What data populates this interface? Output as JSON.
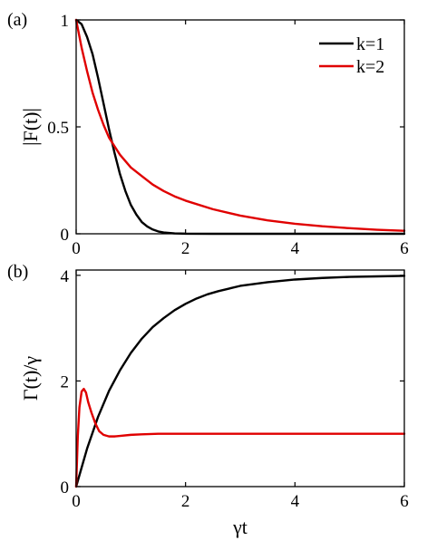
{
  "chart_data": [
    {
      "panel_label": "(a)",
      "type": "line",
      "xlabel": "",
      "ylabel": "|F(t)|",
      "xlim": [
        0,
        6
      ],
      "ylim": [
        0,
        1
      ],
      "xticks": [
        0,
        2,
        4,
        6
      ],
      "xtick_labels": [
        "0",
        "2",
        "4",
        "6"
      ],
      "yticks": [
        0,
        0.5,
        1
      ],
      "ytick_labels": [
        "0",
        "0.5",
        "1"
      ],
      "legend_position": "top-right",
      "series": [
        {
          "name": "k=1",
          "color": "#000000",
          "x": [
            0,
            0.1,
            0.2,
            0.3,
            0.4,
            0.5,
            0.6,
            0.7,
            0.8,
            0.9,
            1.0,
            1.1,
            1.2,
            1.3,
            1.4,
            1.5,
            1.6,
            1.8,
            2.0,
            2.5,
            3.0,
            4.0,
            5.0,
            6.0
          ],
          "y": [
            1.0,
            0.98,
            0.92,
            0.84,
            0.73,
            0.61,
            0.49,
            0.38,
            0.28,
            0.2,
            0.135,
            0.09,
            0.055,
            0.034,
            0.02,
            0.011,
            0.006,
            0.002,
            0.0005,
            0,
            0,
            0,
            0,
            0
          ]
        },
        {
          "name": "k=2",
          "color": "#e00000",
          "x": [
            0,
            0.1,
            0.2,
            0.3,
            0.4,
            0.5,
            0.6,
            0.7,
            0.8,
            1.0,
            1.2,
            1.4,
            1.6,
            1.8,
            2.0,
            2.5,
            3.0,
            3.5,
            4.0,
            4.5,
            5.0,
            5.5,
            6.0
          ],
          "y": [
            1.0,
            0.87,
            0.76,
            0.66,
            0.58,
            0.51,
            0.45,
            0.41,
            0.37,
            0.31,
            0.27,
            0.23,
            0.2,
            0.175,
            0.155,
            0.115,
            0.085,
            0.063,
            0.047,
            0.035,
            0.026,
            0.019,
            0.014
          ]
        }
      ]
    },
    {
      "panel_label": "(b)",
      "type": "line",
      "xlabel": "γt",
      "ylabel": "Γ(t)/γ",
      "xlim": [
        0,
        6
      ],
      "ylim": [
        0,
        4.1
      ],
      "xticks": [
        0,
        2,
        4,
        6
      ],
      "xtick_labels": [
        "0",
        "2",
        "4",
        "6"
      ],
      "yticks": [
        0,
        2,
        4
      ],
      "ytick_labels": [
        "0",
        "2",
        "4"
      ],
      "series": [
        {
          "name": "k=1",
          "color": "#000000",
          "x": [
            0,
            0.2,
            0.4,
            0.6,
            0.8,
            1.0,
            1.2,
            1.4,
            1.6,
            1.8,
            2.0,
            2.2,
            2.4,
            2.6,
            2.8,
            3.0,
            3.5,
            4.0,
            4.5,
            5.0,
            5.5,
            6.0
          ],
          "y": [
            0,
            0.72,
            1.32,
            1.81,
            2.2,
            2.53,
            2.8,
            3.02,
            3.19,
            3.34,
            3.46,
            3.56,
            3.64,
            3.7,
            3.75,
            3.8,
            3.87,
            3.92,
            3.95,
            3.97,
            3.98,
            3.99
          ]
        },
        {
          "name": "k=2",
          "color": "#e00000",
          "x": [
            0,
            0.03,
            0.06,
            0.1,
            0.14,
            0.18,
            0.22,
            0.28,
            0.35,
            0.42,
            0.5,
            0.6,
            0.7,
            0.8,
            1.0,
            1.2,
            1.5,
            2.0,
            3.0,
            4.0,
            5.0,
            6.0
          ],
          "y": [
            0,
            0.95,
            1.5,
            1.8,
            1.85,
            1.78,
            1.6,
            1.4,
            1.2,
            1.05,
            0.98,
            0.95,
            0.95,
            0.96,
            0.98,
            0.99,
            1.0,
            1.0,
            1.0,
            1.0,
            1.0,
            1.0
          ]
        }
      ]
    }
  ]
}
